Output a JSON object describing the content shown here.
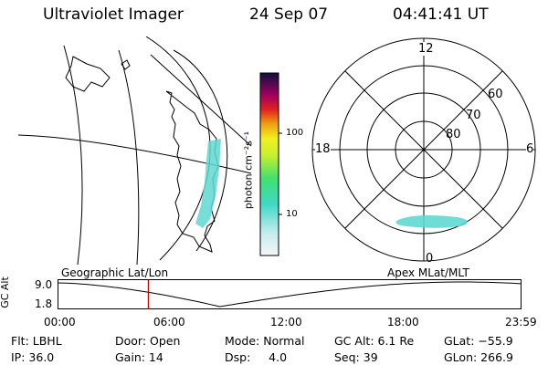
{
  "header": {
    "title": "Ultraviolet Imager",
    "date": "24 Sep 07",
    "time": "04:41:41 UT"
  },
  "colorbar": {
    "unit_label": "photon cm⁻²s⁻¹",
    "ticks": [
      "100",
      "10"
    ]
  },
  "polar": {
    "mlt_labels": {
      "top": "12",
      "left": "18",
      "right": "6",
      "bottom": "0"
    },
    "lat_labels": [
      "60",
      "70",
      "80"
    ]
  },
  "timeline": {
    "left_title": "Geographic Lat/Lon",
    "right_title": "Apex MLat/MLT",
    "y_axis_label": "GC Alt",
    "y_ticks": [
      "9.0",
      "1.8"
    ],
    "x_ticks": [
      "00:00",
      "06:00",
      "12:00",
      "18:00",
      "23:59"
    ],
    "current_time_fraction": 0.196
  },
  "footer": {
    "row1": {
      "flt": "Flt: LBHL",
      "door": "Door: Open",
      "mode": "Mode: Normal",
      "gc_alt": "GC Alt: 6.1 Re",
      "glat": "GLat: −55.9"
    },
    "row2": {
      "ip": "IP: 36.0",
      "gain": "Gain: 14",
      "dsp": "Dsp:     4.0",
      "seq": "Seq: 39",
      "glon": "GLon: 266.9"
    }
  },
  "colors": {
    "aurora": "#5fd8d0",
    "marker": "#cc0000"
  }
}
